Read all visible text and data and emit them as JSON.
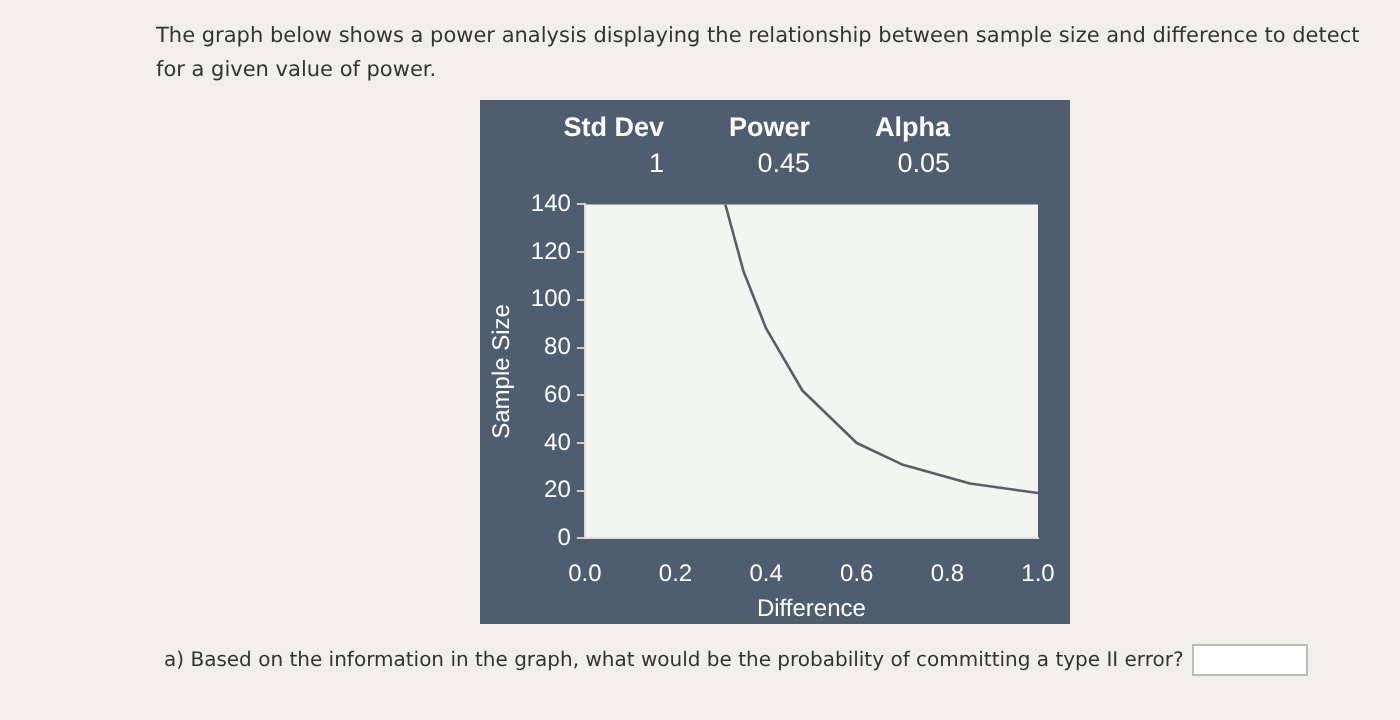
{
  "chart_data": {
    "type": "line",
    "title": "The graph below shows a power analysis displaying the relationship between sample size and difference to detect for a given value of power.",
    "xlabel": "Difference",
    "ylabel": "Sample Size",
    "x": [
      0.31,
      0.35,
      0.4,
      0.48,
      0.6,
      0.7,
      0.85,
      1.0
    ],
    "series": [
      {
        "color": "#5a5f66",
        "values": [
          140,
          112,
          88,
          62,
          40,
          31,
          23,
          19
        ]
      }
    ],
    "xlim": [
      0,
      1
    ],
    "xticks": [
      {
        "value": 0,
        "label": "0.0"
      },
      {
        "value": 0.2,
        "label": "0.2"
      },
      {
        "value": 0.4,
        "label": "0.4"
      },
      {
        "value": 0.6,
        "label": "0.6"
      },
      {
        "value": 0.8,
        "label": "0.8"
      },
      {
        "value": 1,
        "label": "1.0"
      }
    ],
    "ylim": [
      0,
      140
    ],
    "yticks": [
      0,
      20,
      40,
      60,
      80,
      100,
      120,
      140
    ],
    "grid": false,
    "legend": false,
    "marker": "none",
    "line_style": "solid",
    "annotations": [
      "Std Dev",
      "1",
      "Power",
      "0.45",
      "Alpha",
      "0.05",
      "a) Based on the information in the graph, what would be the probability of committing a type II error?"
    ]
  }
}
